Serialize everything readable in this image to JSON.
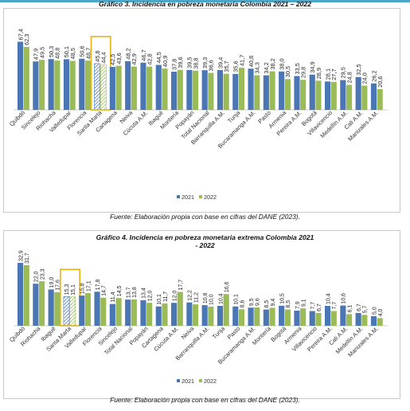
{
  "header_accent": "#4aa7c9",
  "colors": {
    "s2021": "#4a77b4",
    "s2022": "#9bbb59",
    "highlight": "#e8b217"
  },
  "chart_data": [
    {
      "type": "bar",
      "title": "Gráfico 3. Incidencia en pobreza monetaria Colombia 2021 – 2022",
      "source": "Fuente: Elaboración propia con base en cifras del DANE (2023).",
      "categories": [
        "Quibdó",
        "Sincelejo",
        "Riohacha",
        "Valledupar",
        "Florencia",
        "Santa Marta",
        "Cartagena",
        "Neiva",
        "Cúcuta A.M.",
        "Ibagué",
        "Montería",
        "Popayán",
        "Total Nacional",
        "Barranquilla A.M.",
        "Tunja",
        "Bucaramanga A.M.",
        "Pasto",
        "Armenia",
        "Pereira A.M.",
        "Bogotá",
        "Villavicencio",
        "Medellín A.M.",
        "Cali A.M.",
        "Manizales A.M."
      ],
      "series": [
        {
          "name": "2021",
          "values": [
            67.4,
            47.9,
            50.3,
            50.1,
            50.6,
            45.8,
            42.5,
            48.2,
            46.7,
            44.5,
            37.8,
            39.5,
            39.3,
            39.4,
            35.6,
            40.8,
            34.2,
            38.0,
            33.5,
            34.9,
            28.1,
            29.5,
            32.5,
            26.2
          ]
        },
        {
          "name": "2022",
          "values": [
            62.3,
            49.5,
            48.8,
            48.5,
            48.7,
            44.4,
            43.6,
            42.9,
            42.8,
            40.9,
            39.6,
            38.8,
            36.6,
            35.7,
            41.7,
            34.3,
            38.2,
            30.5,
            29.8,
            28.9,
            27.7,
            24.8,
            24.0,
            20.6
          ]
        }
      ],
      "value_labels": {
        "2021": [
          "67,4",
          "47,9",
          "50,3",
          "50,1",
          "50,6",
          "45,8",
          "42,5",
          "48,2",
          "46,7",
          "44,5",
          "37,8",
          "39,5",
          "39,3",
          "39,4",
          "35,6",
          "40,8",
          "34,2",
          "38,0",
          "33,5",
          "34,9",
          "28,1",
          "29,5",
          "32,5",
          "26,2"
        ],
        "2022": [
          "62,3",
          "49,5",
          "48,8",
          "48,5",
          "48,7",
          "44,4",
          "43,6",
          "42,9",
          "42,8",
          "40,9",
          "39,6",
          "38,8",
          "36,6",
          "35,7",
          "41,7",
          "34,3",
          "38,2",
          "30,5",
          "29,8",
          "28,9",
          "27,7",
          "24,8",
          "24,0",
          "20,6"
        ]
      },
      "highlight_category": "Santa Marta",
      "ylim": [
        0,
        75
      ],
      "grid": false,
      "legend_position": "bottom"
    },
    {
      "type": "bar",
      "title": "Gráfico 4. Incidencia en pobreza monetaria extrema Colombia 2021 - 2022",
      "source": "Fuente: Elaboración propia con base en cifras del DANE (2023).",
      "categories": [
        "Quibdó",
        "Riohacha",
        "Ibagué",
        "Santa Marta",
        "Valledupar",
        "Florencia",
        "Sincelejo",
        "Total Nacional",
        "Popayán",
        "Cartagena",
        "Cúcuta A.M.",
        "Neiva",
        "Barranquilla A.M.",
        "Tunja",
        "Pasto",
        "Bucaramanga A.M.",
        "Montería",
        "Bogotá",
        "Armenia",
        "Villavicencio",
        "Pereira A.M.",
        "Cali A.M.",
        "Medellín A.M.",
        "Manizales A.M."
      ],
      "series": [
        {
          "name": "2021",
          "values": [
            32.9,
            22.0,
            19.0,
            15.3,
            15.8,
            17.8,
            11.4,
            13.7,
            13.4,
            10.1,
            12.0,
            12.2,
            10.8,
            10.4,
            10.1,
            9.5,
            8.5,
            10.5,
            7.9,
            7.7,
            10.4,
            10.6,
            6.7,
            5.0
          ]
        },
        {
          "name": "2022",
          "values": [
            31.7,
            23.3,
            17.6,
            15.1,
            17.1,
            14.7,
            14.5,
            13.8,
            12.0,
            11.7,
            17.7,
            11.2,
            10.0,
            16.6,
            8.6,
            9.6,
            9.4,
            8.5,
            9.1,
            6.7,
            7.7,
            6.1,
            5.7,
            4.0
          ]
        }
      ],
      "value_labels": {
        "2021": [
          "32,9",
          "22,0",
          "19,0",
          "15,3",
          "15,8",
          "17,8",
          "11,4",
          "13,7",
          "13,4",
          "10,1",
          "12,0",
          "12,2",
          "10,8",
          "10,4",
          "10,1",
          "9,5",
          "8,5",
          "10,5",
          "7,9",
          "7,7",
          "10,4",
          "10,6",
          "6,7",
          "5,0"
        ],
        "2022": [
          "31,7",
          "23,3",
          "17,6",
          "15,1",
          "17,1",
          "14,7",
          "14,5",
          "13,8",
          "12,0",
          "11,7",
          "17,7",
          "11,2",
          "10,0",
          "16,6",
          "8,6",
          "9,6",
          "9,4",
          "8,5",
          "9,1",
          "6,7",
          "7,7",
          "6,1",
          "5,7",
          "4,0"
        ]
      },
      "highlight_category": "Santa Marta",
      "ylim": [
        0,
        36
      ],
      "grid": false,
      "legend_position": "bottom"
    }
  ]
}
